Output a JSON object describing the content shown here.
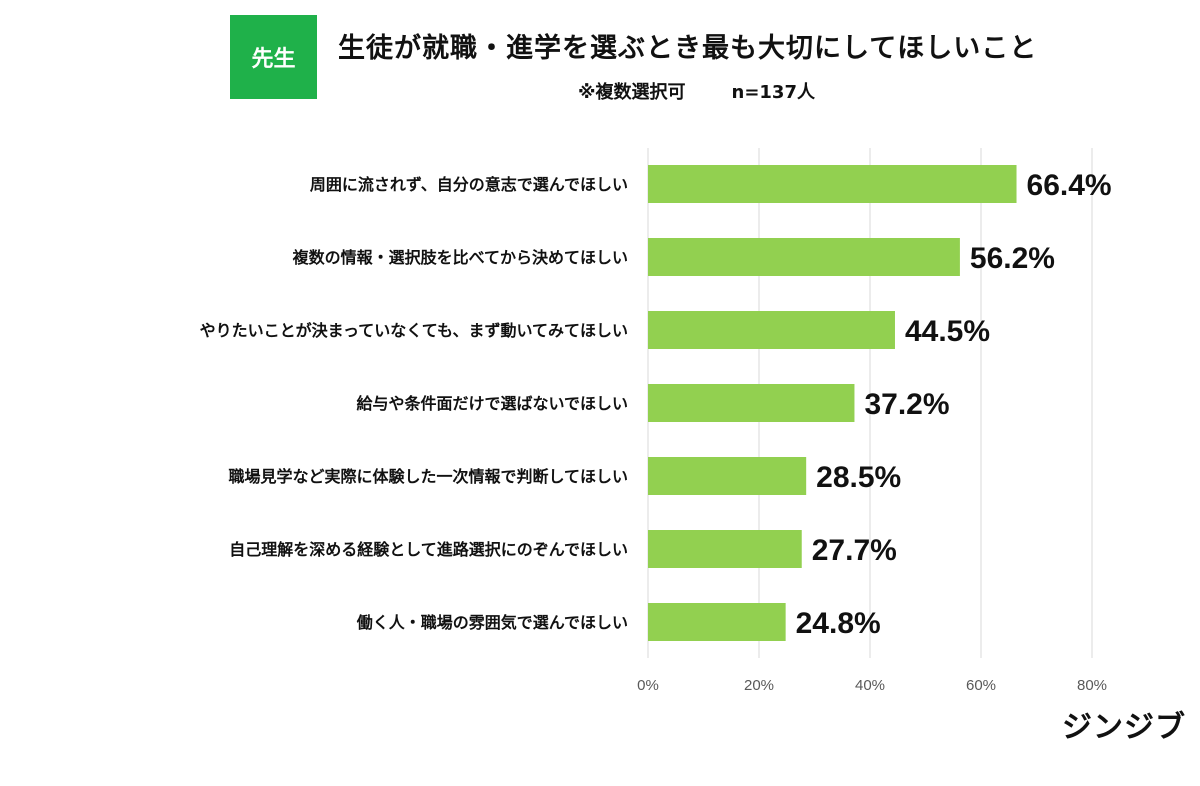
{
  "header": {
    "badge": "先生",
    "title": "生徒が就職・進学を選ぶとき最も大切にしてほしいこと",
    "note": "※複数選択可",
    "sample": "n=137人"
  },
  "brand": "ジンジブ",
  "colors": {
    "bar": "#92d050",
    "badge": "#1fb14a",
    "grid": "#d9d9d9",
    "tick": "#595959"
  },
  "chart_data": {
    "type": "bar",
    "orientation": "horizontal",
    "categories": [
      "周囲に流されず、自分の意志で選んでほしい",
      "複数の情報・選択肢を比べてから決めてほしい",
      "やりたいことが決まっていなくても、まず動いてみてほしい",
      "給与や条件面だけで選ばないでほしい",
      "職場見学など実際に体験した一次情報で判断してほしい",
      "自己理解を深める経験として進路選択にのぞんでほしい",
      "働く人・職場の雰囲気で選んでほしい"
    ],
    "values": [
      66.4,
      56.2,
      44.5,
      37.2,
      28.5,
      27.7,
      24.8
    ],
    "value_labels": [
      "66.4%",
      "56.2%",
      "44.5%",
      "37.2%",
      "28.5%",
      "27.7%",
      "24.8%"
    ],
    "xlim": [
      0,
      80
    ],
    "xticks": [
      0,
      20,
      40,
      60,
      80
    ],
    "xtick_labels": [
      "0%",
      "20%",
      "40%",
      "60%",
      "80%"
    ],
    "grid": true
  }
}
